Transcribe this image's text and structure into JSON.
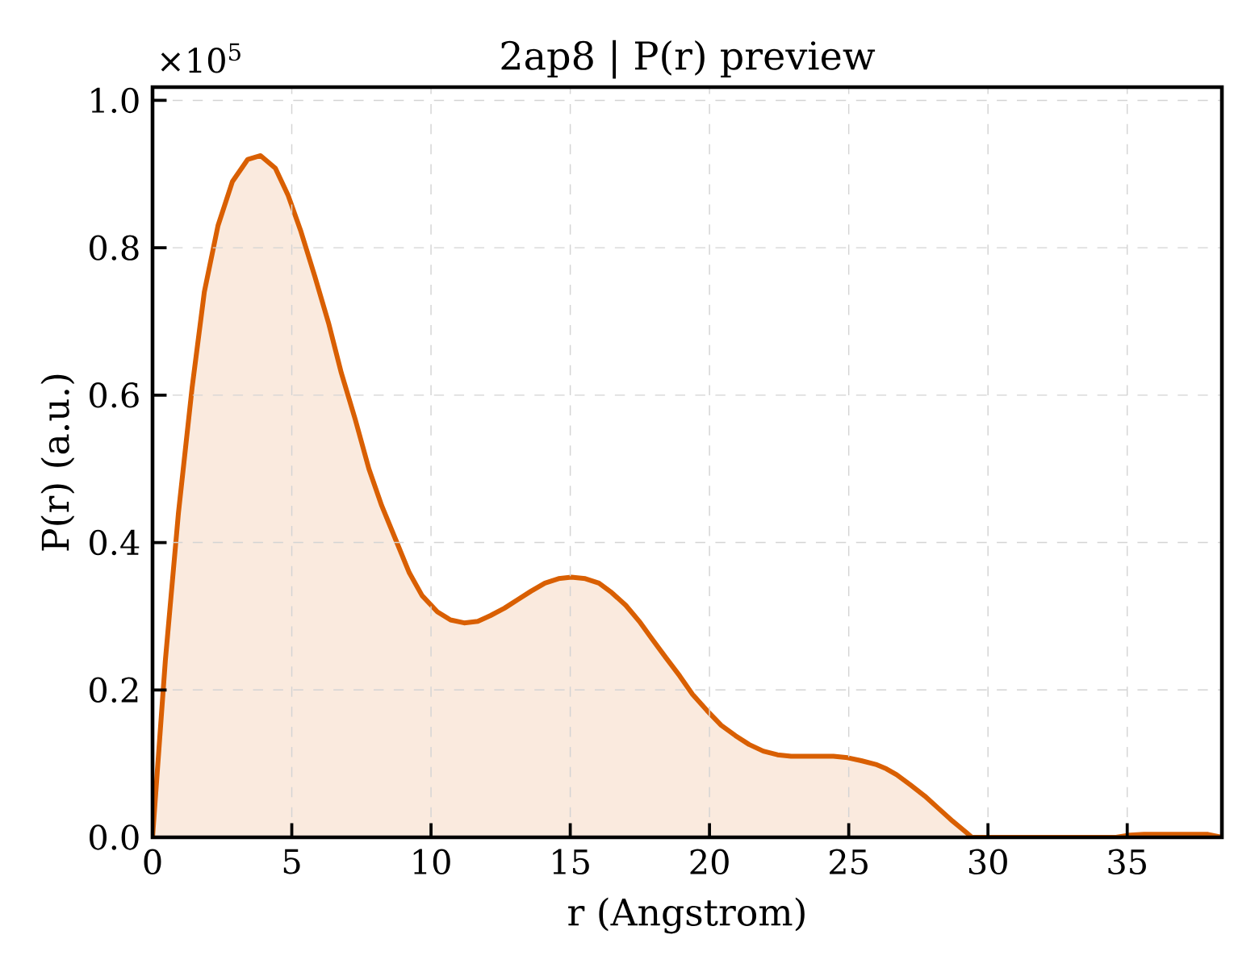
{
  "chart_data": {
    "type": "area",
    "title": "2ap8 | P(r) preview",
    "xlabel": "r (Angstrom)",
    "ylabel": "P(r) (a.u.)",
    "annotations": [
      "×10$^{5}$"
    ],
    "x": [
      0,
      0.46,
      0.93,
      1.42,
      1.86,
      2.35,
      2.87,
      3.42,
      3.88,
      4.41,
      4.87,
      5.33,
      5.83,
      6.32,
      6.78,
      7.28,
      7.77,
      8.23,
      8.72,
      9.22,
      9.68,
      10.23,
      10.7,
      11.19,
      11.68,
      12.14,
      12.64,
      13.13,
      13.59,
      14.09,
      14.58,
      15.04,
      15.54,
      16.03,
      16.49,
      16.99,
      17.48,
      17.94,
      18.43,
      18.93,
      19.39,
      19.91,
      20.42,
      20.93,
      21.42,
      21.93,
      22.44,
      22.93,
      23.45,
      23.94,
      24.45,
      24.96,
      25.45,
      25.97,
      26.35,
      26.72,
      27.22,
      27.73,
      28.23,
      28.73,
      29.24,
      29.42,
      34.6,
      35.1,
      35.6,
      36.1,
      37.0,
      37.9,
      38.4
    ],
    "series": [
      {
        "color": "#d95f02",
        "values": [
          0,
          0.24,
          0.44,
          0.61,
          0.74,
          0.83,
          0.89,
          0.92,
          0.925,
          0.908,
          0.871,
          0.822,
          0.761,
          0.698,
          0.63,
          0.567,
          0.5,
          0.45,
          0.405,
          0.359,
          0.328,
          0.306,
          0.295,
          0.291,
          0.293,
          0.301,
          0.311,
          0.323,
          0.334,
          0.345,
          0.351,
          0.353,
          0.351,
          0.345,
          0.332,
          0.315,
          0.293,
          0.269,
          0.244,
          0.219,
          0.194,
          0.172,
          0.152,
          0.138,
          0.126,
          0.117,
          0.112,
          0.11,
          0.11,
          0.11,
          0.11,
          0.108,
          0.104,
          0.099,
          0.093,
          0.085,
          0.071,
          0.056,
          0.039,
          0.022,
          0.006,
          0,
          0,
          0.003,
          0.004,
          0.004,
          0.004,
          0.004,
          0
        ]
      }
    ],
    "xlim": [
      0,
      38.4
    ],
    "ylim": [
      0,
      1.018
    ],
    "xticks": [
      0,
      5,
      10,
      15,
      20,
      25,
      30,
      35
    ],
    "yticks": [
      {
        "value": 0,
        "label": "0.0"
      },
      0.2,
      0.4,
      0.6,
      0.8,
      {
        "value": 1.0,
        "label": "1.0"
      }
    ],
    "grid": true
  }
}
